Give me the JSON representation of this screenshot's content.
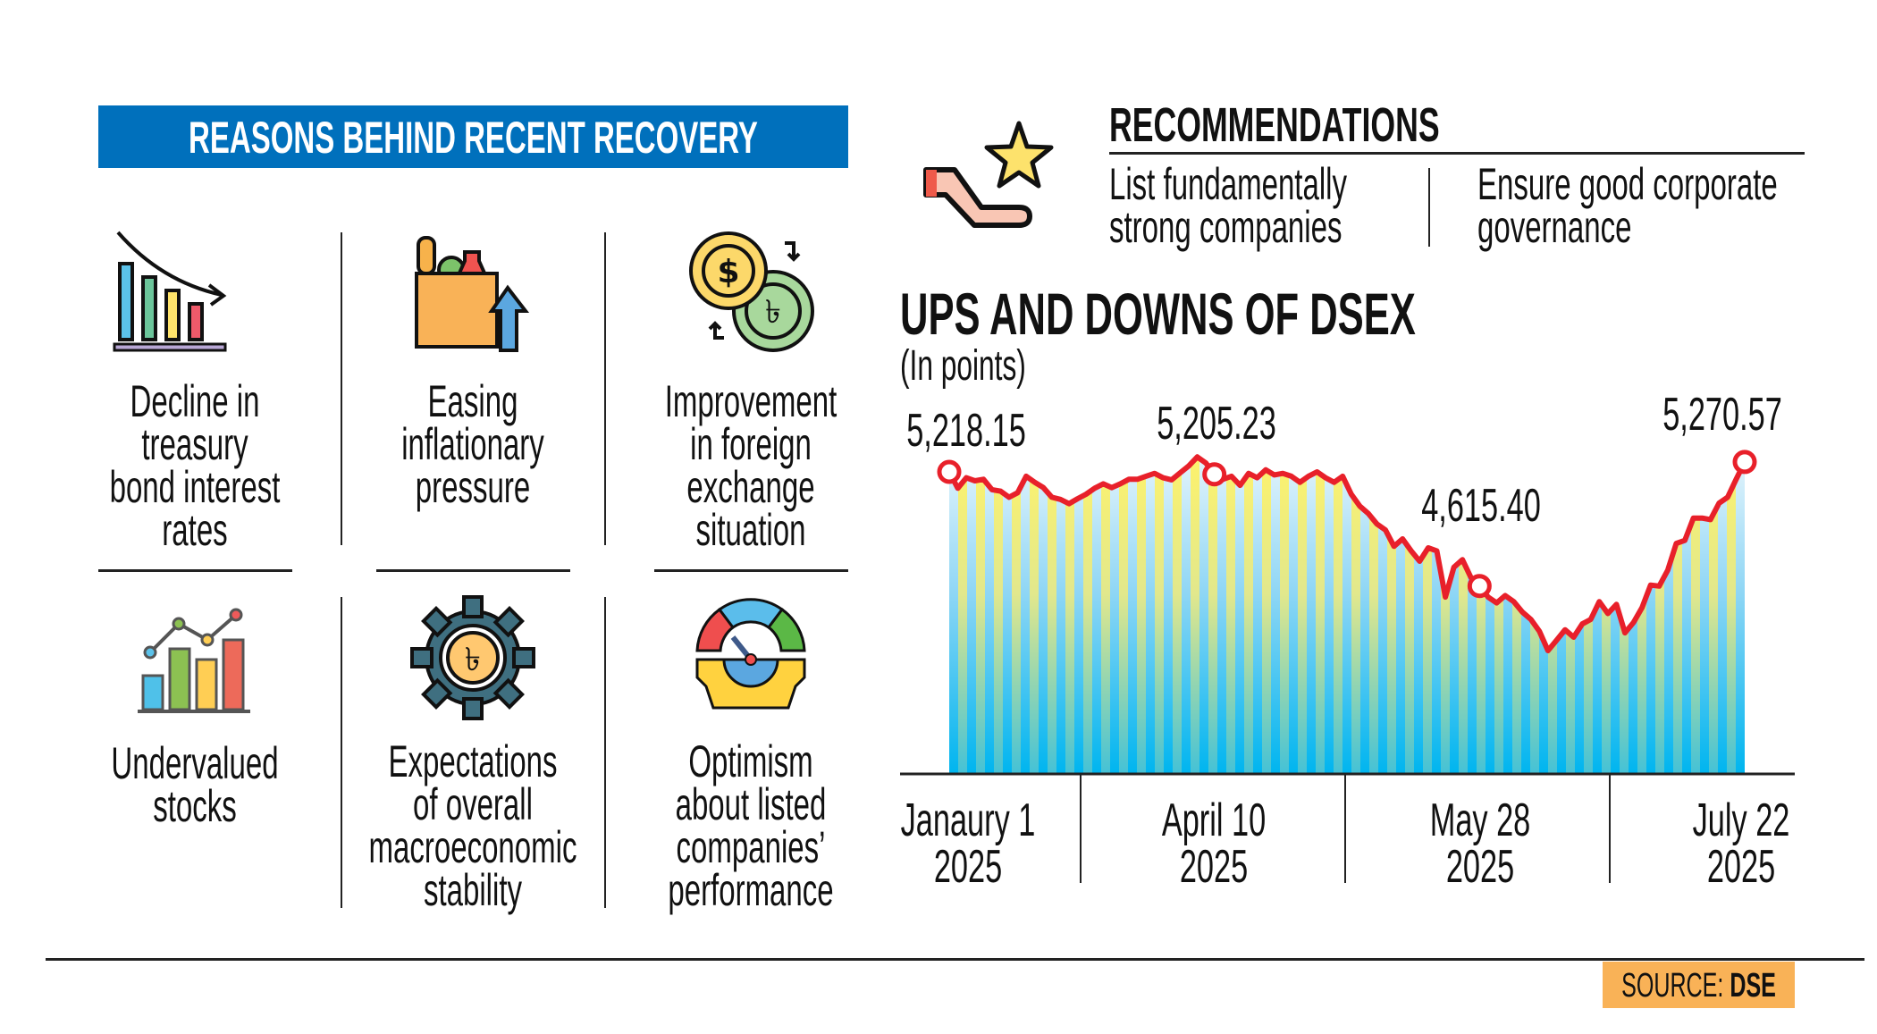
{
  "banner": {
    "title": "REASONS BEHIND RECENT RECOVERY",
    "color": "#0070BC"
  },
  "reasons": [
    {
      "icon": "declining-bar-chart-icon",
      "lines": [
        "Decline in",
        "treasury",
        "bond interest",
        "rates"
      ]
    },
    {
      "icon": "grocery-bag-price-up-icon",
      "lines": [
        "Easing",
        "inflationary",
        "pressure"
      ]
    },
    {
      "icon": "currency-exchange-icon",
      "lines": [
        "Improvement",
        "in foreign",
        "exchange",
        "situation"
      ]
    },
    {
      "icon": "rising-bar-chart-icon",
      "lines": [
        "Undervalued",
        "stocks"
      ]
    },
    {
      "icon": "taka-gear-icon",
      "lines": [
        "Expectations",
        "of overall",
        "macroeconomic",
        "stability"
      ]
    },
    {
      "icon": "gauge-gear-icon",
      "lines": [
        "Optimism",
        "about listed",
        "companies’",
        "performance"
      ]
    }
  ],
  "recommendations": {
    "icon": "hand-star-icon",
    "title": "RECOMMENDATIONS",
    "items": [
      {
        "lines": [
          "List fundamentally",
          "strong companies"
        ]
      },
      {
        "lines": [
          "Ensure good corporate",
          "governance"
        ]
      }
    ]
  },
  "chart_data": {
    "type": "area",
    "title": "UPS AND DOWNS OF DSEX",
    "subtitle": "(In points)",
    "xlabel": "",
    "ylabel": "",
    "grid": false,
    "legend": "none",
    "line_color": "#E8202A",
    "fill_colors": {
      "stripe_yellow": "#FFF066",
      "stripe_blue": "#00B5EF"
    },
    "x_labels": [
      {
        "index": 0,
        "line1": "Janaury 1",
        "line2": "2025"
      },
      {
        "index": 31,
        "line1": "April 10",
        "line2": "2025"
      },
      {
        "index": 62,
        "line1": "May 28",
        "line2": "2025"
      },
      {
        "index": 93,
        "line1": "July 22",
        "line2": "2025"
      }
    ],
    "annotations": [
      {
        "index": 0,
        "label": "5,218.15"
      },
      {
        "index": 31,
        "label": "5,205.23"
      },
      {
        "index": 62,
        "label": "4,615.40"
      },
      {
        "index": 93,
        "label": "5,270.57"
      }
    ],
    "values": [
      5218.15,
      5132,
      5187,
      5171,
      5179,
      5124,
      5116,
      5084,
      5108,
      5195,
      5163,
      5135,
      5084,
      5073,
      5050,
      5076,
      5100,
      5132,
      5155,
      5135,
      5155,
      5179,
      5179,
      5195,
      5210,
      5187,
      5176,
      5213,
      5250,
      5297,
      5265,
      5205.23,
      5179,
      5195,
      5147,
      5210,
      5187,
      5229,
      5202,
      5210,
      5195,
      5163,
      5195,
      5218,
      5187,
      5163,
      5195,
      5100,
      5037,
      4998,
      4943,
      4911,
      4825,
      4864,
      4801,
      4746,
      4817,
      4801,
      4557,
      4714,
      4754,
      4659,
      4615.4,
      4557,
      4526,
      4565,
      4533,
      4478,
      4439,
      4376,
      4274,
      4329,
      4384,
      4345,
      4415,
      4439,
      4533,
      4470,
      4518,
      4368,
      4423,
      4502,
      4620,
      4615,
      4699,
      4840,
      4856,
      4974,
      4974,
      4966,
      5053,
      5084,
      5179,
      5270.57
    ]
  },
  "source": {
    "prefix": "SOURCE: ",
    "name": "DSE",
    "color": "#F9B257"
  }
}
